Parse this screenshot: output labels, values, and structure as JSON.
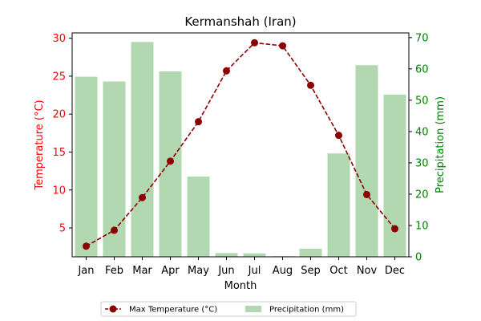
{
  "chart_data": {
    "type": "bar+line",
    "title": "Kermanshah (Iran)",
    "xlabel": "Month",
    "categories": [
      "Jan",
      "Feb",
      "Mar",
      "Apr",
      "May",
      "Jun",
      "Jul",
      "Aug",
      "Sep",
      "Oct",
      "Nov",
      "Dec"
    ],
    "left_axis": {
      "label": "Temperature (°C)",
      "color": "#ff0000",
      "ylim": [
        1.2,
        30.7
      ],
      "ticks": [
        5,
        10,
        15,
        20,
        25,
        30
      ]
    },
    "right_axis": {
      "label": "Precipitation (mm)",
      "color": "#008000",
      "ylim": [
        0,
        71.5
      ],
      "ticks": [
        0,
        10,
        20,
        30,
        40,
        50,
        60,
        70
      ]
    },
    "series": [
      {
        "name": "Max Temperature (°C)",
        "type": "line",
        "axis": "left",
        "color": "#8b0000",
        "line_style": "dashed",
        "marker": "circle",
        "values": [
          2.6,
          4.7,
          9.0,
          13.8,
          19.0,
          25.7,
          29.4,
          29.0,
          23.8,
          17.2,
          9.4,
          4.9
        ]
      },
      {
        "name": "Precipitation (mm)",
        "type": "bar",
        "axis": "right",
        "color": "#b2d8b2",
        "values": [
          57.5,
          56.0,
          68.6,
          59.2,
          25.6,
          1.2,
          1.1,
          0.2,
          2.6,
          33.0,
          61.2,
          51.8
        ]
      }
    ],
    "legend": {
      "placement": "bottom-center",
      "columns": 2
    },
    "grid": false
  }
}
